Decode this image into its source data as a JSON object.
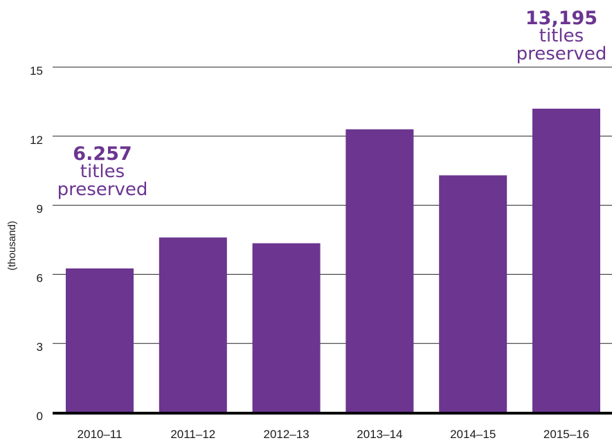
{
  "chart_data": {
    "type": "bar",
    "categories": [
      "2010–11",
      "2011–12",
      "2012–13",
      "2013–14",
      "2014–15",
      "2015–16"
    ],
    "values": [
      6.257,
      7.6,
      7.35,
      12.3,
      10.3,
      13.195
    ],
    "ylabel": "(thousand)",
    "ylim": [
      0,
      15
    ],
    "yticks": [
      0,
      3,
      6,
      9,
      12,
      15
    ],
    "grid": true,
    "bar_color": "#6b3590",
    "annotations": [
      {
        "category_index": 0,
        "value_text": "6.257",
        "line1": "titles",
        "line2": "preserved"
      },
      {
        "category_index": 5,
        "value_text": "13,195",
        "line1": "titles",
        "line2": "preserved"
      }
    ]
  }
}
